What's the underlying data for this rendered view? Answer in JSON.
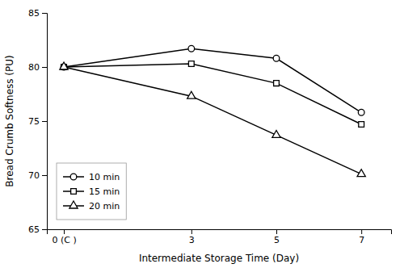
{
  "chart_data": {
    "type": "line",
    "x": [
      0,
      3,
      5,
      7
    ],
    "xticks": [
      {
        "value": 0,
        "label": "0 (C )"
      },
      3,
      5,
      7
    ],
    "xlim": [
      -0.4,
      7.7
    ],
    "ylim": [
      65,
      85
    ],
    "yticks": [
      65,
      70,
      75,
      80,
      85
    ],
    "xlabel": "Intermediate Storage Time (Day)",
    "ylabel": "Bread Crumb Softness (PU)",
    "series": [
      {
        "name": "10 min",
        "values": [
          80.0,
          81.7,
          80.8,
          75.8
        ],
        "marker": "circle",
        "color": "#000000"
      },
      {
        "name": "15 min",
        "values": [
          80.0,
          80.3,
          78.5,
          74.7
        ],
        "marker": "square",
        "color": "#000000"
      },
      {
        "name": "20 min",
        "values": [
          80.0,
          77.3,
          73.7,
          70.1
        ],
        "marker": "triangle",
        "color": "#000000"
      }
    ],
    "legend": "lower left",
    "grid": false
  }
}
